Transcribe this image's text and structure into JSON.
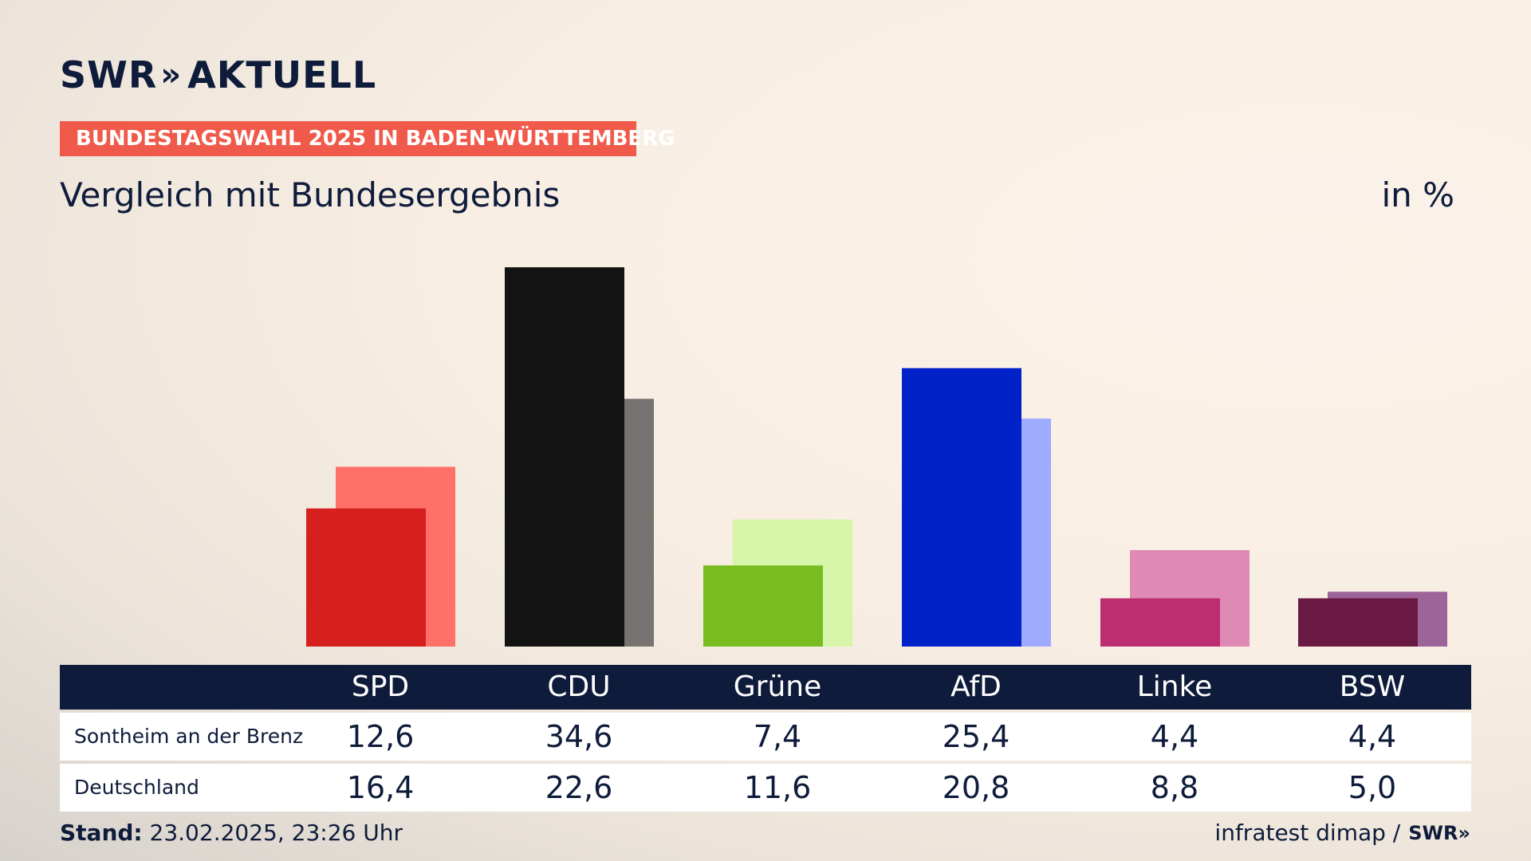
{
  "brand": {
    "name": "SWR",
    "arrows": "»",
    "product": "AKTUELL"
  },
  "banner": "BUNDESTAGSWAHL 2025 IN BADEN-WÜRTTEMBERG",
  "subtitle": "Vergleich mit Bundesergebnis",
  "unit": "in %",
  "chart_data": {
    "type": "bar",
    "title": "Vergleich mit Bundesergebnis",
    "ylabel": "in %",
    "ylim": [
      0,
      35
    ],
    "grid": false,
    "categories": [
      "SPD",
      "CDU",
      "Grüne",
      "AfD",
      "Linke",
      "BSW"
    ],
    "series": [
      {
        "name": "Sontheim an der Brenz",
        "values": [
          12.6,
          34.6,
          7.4,
          25.4,
          4.4,
          4.4
        ],
        "colors": [
          "#d61f1f",
          "#131313",
          "#78bc1f",
          "#0022c8",
          "#bc2d71",
          "#6a1942"
        ]
      },
      {
        "name": "Deutschland",
        "values": [
          16.4,
          22.6,
          11.6,
          20.8,
          8.8,
          5.0
        ],
        "colors": [
          "#ff7168",
          "#767370",
          "#d6f5a8",
          "#9fabff",
          "#de8ab5",
          "#9c6499"
        ]
      }
    ]
  },
  "table": {
    "headers": [
      "SPD",
      "CDU",
      "Grüne",
      "AfD",
      "Linke",
      "BSW"
    ],
    "rows": [
      {
        "label": "Sontheim an der Brenz",
        "values": [
          "12,6",
          "34,6",
          "7,4",
          "25,4",
          "4,4",
          "4,4"
        ]
      },
      {
        "label": "Deutschland",
        "values": [
          "16,4",
          "22,6",
          "11,6",
          "20,8",
          "8,8",
          "5,0"
        ]
      }
    ]
  },
  "footer": {
    "stand_label": "Stand:",
    "stand_value": "23.02.2025, 23:26 Uhr",
    "source": "infratest dimap /",
    "source_brand": "SWR»"
  }
}
